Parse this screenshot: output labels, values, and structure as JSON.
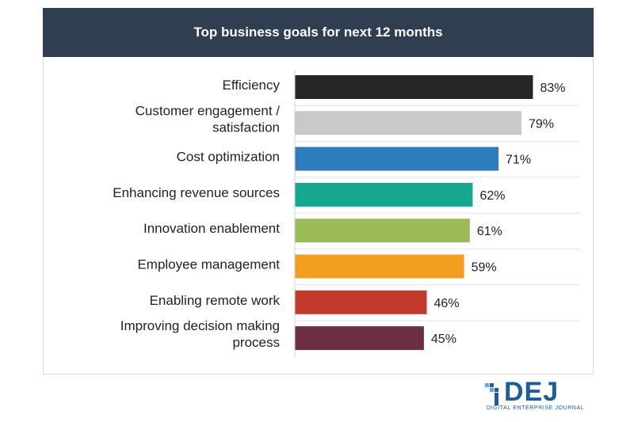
{
  "chart_data": {
    "type": "bar",
    "orientation": "horizontal",
    "title": "Top business  goals for next 12 months",
    "categories": [
      [
        "Efficiency"
      ],
      [
        "Customer engagement /",
        "satisfaction"
      ],
      [
        "Cost optimization"
      ],
      [
        "Enhancing revenue sources"
      ],
      [
        "Innovation enablement"
      ],
      [
        "Employee management"
      ],
      [
        "Enabling remote work"
      ],
      [
        "Improving decision making",
        "process"
      ]
    ],
    "values": [
      83,
      79,
      71,
      62,
      61,
      59,
      46,
      45
    ],
    "value_labels": [
      "83%",
      "79%",
      "71%",
      "62%",
      "61%",
      "59%",
      "46%",
      "45%"
    ],
    "colors": [
      "#262626",
      "#c9c9c9",
      "#2e7bbd",
      "#17a98f",
      "#9bbb59",
      "#f29e1f",
      "#c0392b",
      "#6b2f45"
    ],
    "xlim": [
      0,
      100
    ],
    "grid": false,
    "legend": "none"
  },
  "logo": {
    "text": "DEJ",
    "subtitle": "DIGITAL ENTERPRISE JOURNAL",
    "color": "#1f5d99"
  }
}
